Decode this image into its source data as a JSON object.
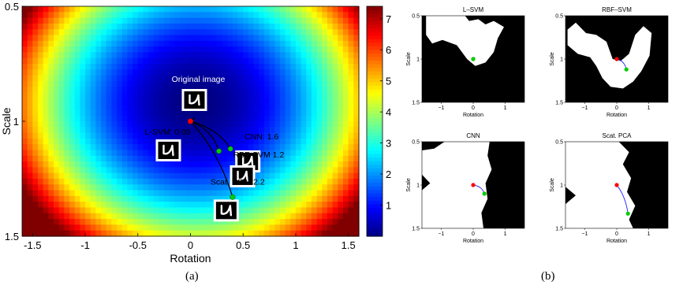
{
  "chart_data": [
    {
      "type": "heatmap",
      "xlabel": "Rotation",
      "ylabel": "Scale",
      "xlim": [
        -1.6,
        1.6
      ],
      "ylim": [
        0.5,
        1.5
      ],
      "y_inverted": true,
      "x_ticks": [
        "-1.5",
        "-1",
        "-0.5",
        "0",
        "0.5",
        "1",
        "1.5"
      ],
      "y_ticks": [
        "0.5",
        "1",
        "1.5"
      ],
      "colorbar_ticks": [
        "1",
        "2",
        "3",
        "4",
        "5",
        "6",
        "7"
      ],
      "colorbar_range": [
        0,
        7.4
      ],
      "colormap": "jet",
      "field_minimum": {
        "x": 0.05,
        "y": 0.92
      },
      "origin_point": {
        "label": "Original image",
        "x": 0.0,
        "y": 1.0,
        "color": "#ff0000"
      },
      "points": [
        {
          "label": "CNN: 1.6",
          "x": 0.38,
          "y": 1.12,
          "color": "#00d000"
        },
        {
          "label": "L-SVM: 0.05",
          "x": 0.0,
          "y": 1.0,
          "color": "#00d000"
        },
        {
          "label": "RBF-SVM 1.2",
          "x": 0.27,
          "y": 1.13,
          "color": "#00d000"
        },
        {
          "label": "Scat. PCA: 2.2",
          "x": 0.4,
          "y": 1.33,
          "color": "#00d000"
        }
      ],
      "caption": "(a)"
    },
    {
      "type": "scatter",
      "caption": "(b)",
      "panels": [
        {
          "title": "L–SVM",
          "xlabel": "Rotation",
          "ylabel": "Scale",
          "x_ticks": [
            "−1",
            "0",
            "1"
          ],
          "y_ticks": [
            "0.5",
            "1",
            "1.5"
          ],
          "xlim": [
            -1.6,
            1.6
          ],
          "ylim": [
            0.5,
            1.5
          ],
          "origin": {
            "x": 0.0,
            "y": 1.0
          },
          "end": {
            "x": 0.0,
            "y": 1.0
          }
        },
        {
          "title": "RBF–SVM",
          "xlabel": "Rotation",
          "ylabel": "Scale",
          "x_ticks": [
            "−1",
            "0",
            "1"
          ],
          "y_ticks": [
            "0.5",
            "1",
            "1.5"
          ],
          "xlim": [
            -1.6,
            1.6
          ],
          "ylim": [
            0.5,
            1.5
          ],
          "origin": {
            "x": 0.0,
            "y": 1.0
          },
          "end": {
            "x": 0.3,
            "y": 1.12
          }
        },
        {
          "title": "CNN",
          "xlabel": "Rotation",
          "ylabel": "Scale",
          "x_ticks": [
            "−1",
            "0",
            "1"
          ],
          "y_ticks": [
            "0.5",
            "1",
            "1.5"
          ],
          "xlim": [
            -1.6,
            1.6
          ],
          "ylim": [
            0.5,
            1.5
          ],
          "origin": {
            "x": 0.0,
            "y": 1.0
          },
          "end": {
            "x": 0.35,
            "y": 1.1
          }
        },
        {
          "title": "Scat. PCA",
          "xlabel": "Rotation",
          "ylabel": "Scale",
          "x_ticks": [
            "−1",
            "0",
            "1"
          ],
          "y_ticks": [
            "0.5",
            "1",
            "1.5"
          ],
          "xlim": [
            -1.6,
            1.6
          ],
          "ylim": [
            0.5,
            1.5
          ],
          "origin": {
            "x": 0.0,
            "y": 1.0
          },
          "end": {
            "x": 0.35,
            "y": 1.33
          }
        }
      ]
    }
  ]
}
